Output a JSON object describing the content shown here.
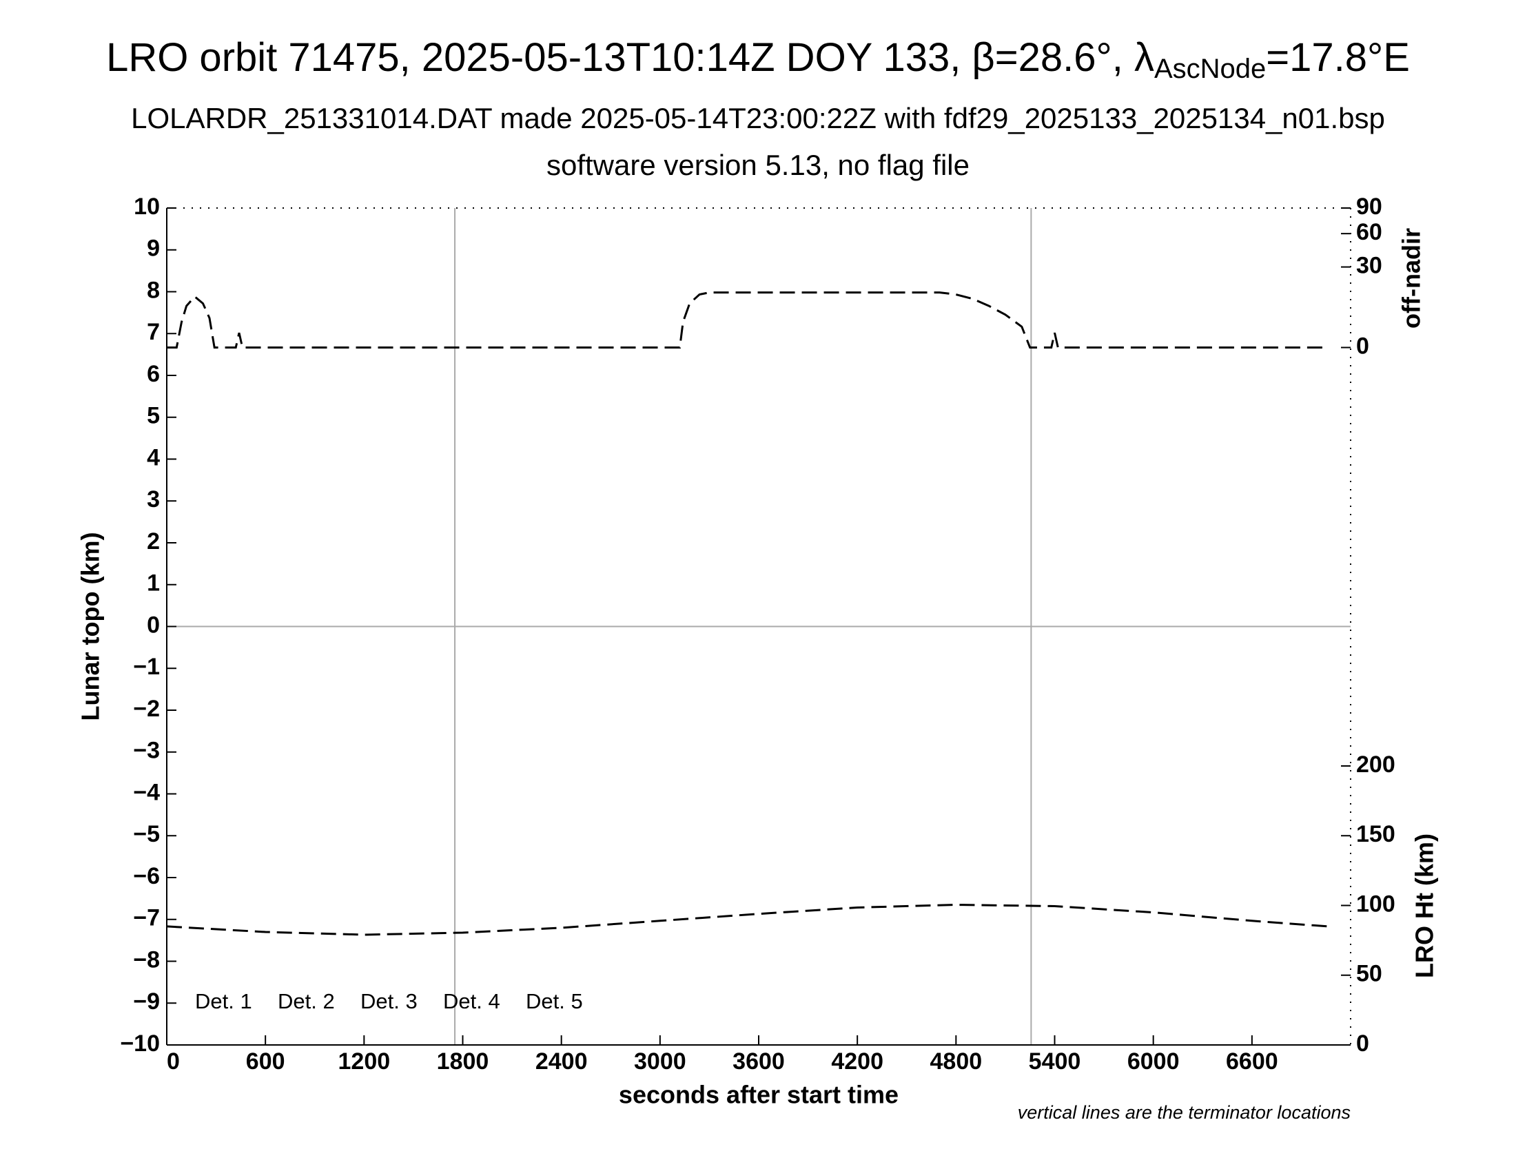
{
  "chart_data": {
    "type": "line",
    "title_parts": [
      "LRO orbit 71475, 2025-05-13T10:14Z DOY 133, β=28.6°, λ",
      "AscNode",
      "=17.8°E"
    ],
    "subtitles": [
      "LOLARDR_251331014.DAT made 2025-05-14T23:00:22Z with fdf29_2025133_2025134_n01.bsp",
      "software version 5.13, no flag file"
    ],
    "xlabel": "seconds after start time",
    "ylabel": "Lunar topo (km)",
    "y2label": "off-nadir",
    "y3label": "LRO Ht (km)",
    "note": "vertical lines are the terminator locations",
    "xlim": [
      0,
      7200
    ],
    "xticks": [
      0,
      600,
      1200,
      1800,
      2400,
      3000,
      3600,
      4200,
      4800,
      5400,
      6000,
      6600
    ],
    "ylim": [
      -10,
      10
    ],
    "yticks": [
      {
        "value": -10,
        "label": "−10"
      },
      {
        "value": -9,
        "label": "−9"
      },
      {
        "value": -8,
        "label": "−8"
      },
      {
        "value": -7,
        "label": "−7"
      },
      {
        "value": -6,
        "label": "−6"
      },
      {
        "value": -5,
        "label": "−5"
      },
      {
        "value": -4,
        "label": "−4"
      },
      {
        "value": -3,
        "label": "−3"
      },
      {
        "value": -2,
        "label": "−2"
      },
      {
        "value": -1,
        "label": "−1"
      },
      0,
      1,
      2,
      3,
      4,
      5,
      6,
      7,
      8,
      9,
      10
    ],
    "y2lim": [
      0,
      90
    ],
    "y2ticks": [
      0,
      30,
      60,
      90
    ],
    "y2scale": "sqrt",
    "y3lim": [
      0,
      600
    ],
    "y3ticks": [
      0,
      50,
      100,
      150,
      200
    ],
    "terminators": [
      1752,
      5257
    ],
    "zero_line": 0,
    "series": [
      {
        "name": "off-nadir",
        "axis": "y2",
        "color": "#000000",
        "x": [
          0,
          60,
          90,
          120,
          170,
          220,
          260,
          290,
          420,
          440,
          460,
          3120,
          3140,
          3180,
          3240,
          3300,
          4700,
          4800,
          4900,
          5000,
          5100,
          5200,
          5250,
          5380,
          5400,
          5420,
          7060
        ],
        "values": [
          0,
          0,
          3,
          8,
          12,
          9,
          4,
          0,
          0,
          1,
          0,
          0,
          3,
          9,
          13,
          14,
          14,
          13,
          11,
          8,
          5,
          2,
          0,
          0,
          1,
          0,
          0
        ]
      },
      {
        "name": "LRO Ht",
        "axis": "y3",
        "color": "#000000",
        "x": [
          0,
          600,
          1200,
          1800,
          2400,
          3000,
          3600,
          4200,
          4800,
          5400,
          6000,
          6600,
          7060
        ],
        "values": [
          85,
          81,
          79,
          80.5,
          84,
          89,
          94,
          98.5,
          100.5,
          99.5,
          95,
          89,
          85
        ]
      }
    ],
    "detectors": [
      {
        "name": "Det. 1",
        "color": "#000000"
      },
      {
        "name": "Det. 2",
        "color": "#0000ff"
      },
      {
        "name": "Det. 3",
        "color": "#00ff00"
      },
      {
        "name": "Det. 4",
        "color": "#ffa500"
      },
      {
        "name": "Det. 5",
        "color": "#ff0000"
      }
    ]
  }
}
